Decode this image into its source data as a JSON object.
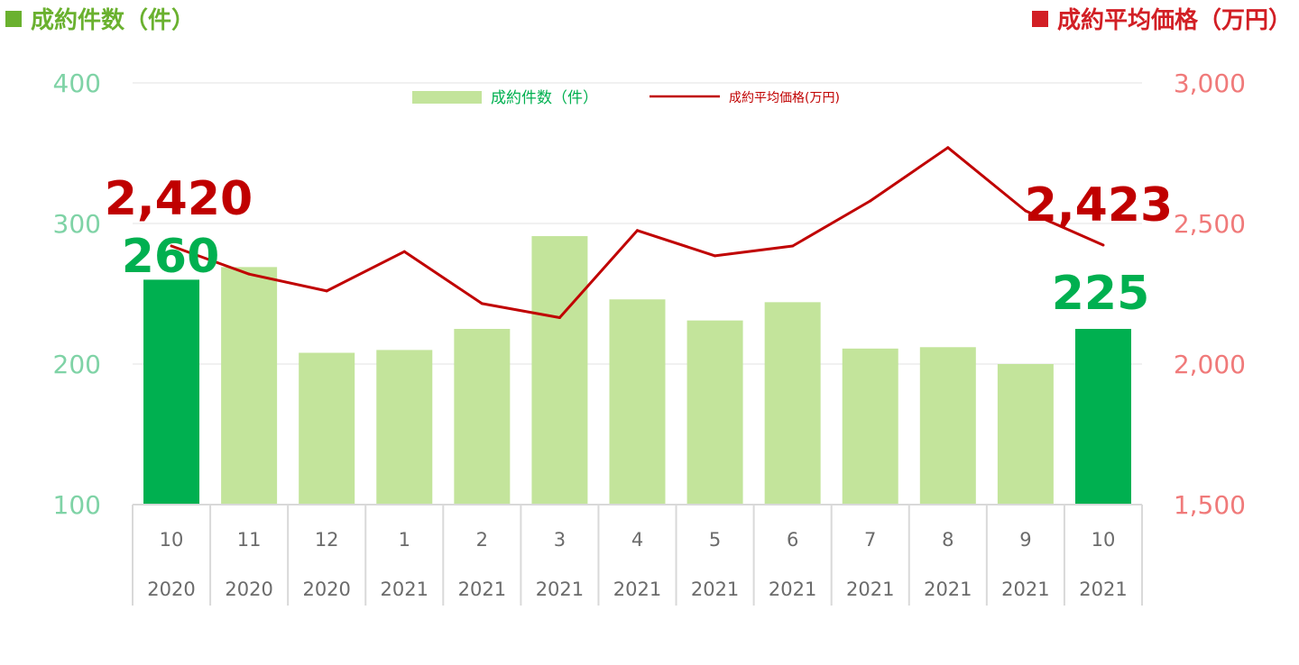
{
  "header": {
    "left_title": "成約件数（件）",
    "left_color": "#6ab12f",
    "right_title": "成約平均価格（万円）",
    "right_color": "#d21f25"
  },
  "legend": {
    "bar_label": "成約件数（件）",
    "line_label": "成約平均価格(万円)"
  },
  "chart_data": {
    "type": "bar",
    "categories": [
      [
        "10",
        "2020"
      ],
      [
        "11",
        "2020"
      ],
      [
        "12",
        "2020"
      ],
      [
        "1",
        "2021"
      ],
      [
        "2",
        "2021"
      ],
      [
        "3",
        "2021"
      ],
      [
        "4",
        "2021"
      ],
      [
        "5",
        "2021"
      ],
      [
        "6",
        "2021"
      ],
      [
        "7",
        "2021"
      ],
      [
        "8",
        "2021"
      ],
      [
        "9",
        "2021"
      ],
      [
        "10",
        "2021"
      ]
    ],
    "series": [
      {
        "name": "成約件数（件）",
        "type": "bar",
        "axis": "left",
        "values": [
          260,
          269,
          208,
          210,
          225,
          291,
          246,
          231,
          244,
          211,
          212,
          200,
          225
        ],
        "color": "#c3e49b",
        "highlight_color": "#00b050",
        "highlight_indices": [
          0,
          12
        ]
      },
      {
        "name": "成約平均価格(万円)",
        "type": "line",
        "axis": "right",
        "values": [
          2420,
          2320,
          2260,
          2400,
          2215,
          2165,
          2475,
          2385,
          2420,
          2580,
          2770,
          2545,
          2423
        ],
        "color": "#c00000"
      }
    ],
    "left_axis": {
      "ylim": [
        100,
        400
      ],
      "ticks": [
        "100",
        "200",
        "300",
        "400"
      ],
      "color": "#7fd3a6"
    },
    "right_axis": {
      "ylim": [
        1500,
        3000
      ],
      "ticks": [
        "1,500",
        "2,000",
        "2,500",
        "3,000"
      ],
      "color": "#f07a7a"
    },
    "annotations": [
      {
        "text": "2,420",
        "series": "line",
        "index": 0,
        "color": "#c00000"
      },
      {
        "text": "260",
        "series": "bar",
        "index": 0,
        "color": "#00b050"
      },
      {
        "text": "2,423",
        "series": "line",
        "index": 12,
        "color": "#c00000"
      },
      {
        "text": "225",
        "series": "bar",
        "index": 12,
        "color": "#00b050"
      }
    ],
    "grid": true,
    "legend_position": "top-center"
  }
}
